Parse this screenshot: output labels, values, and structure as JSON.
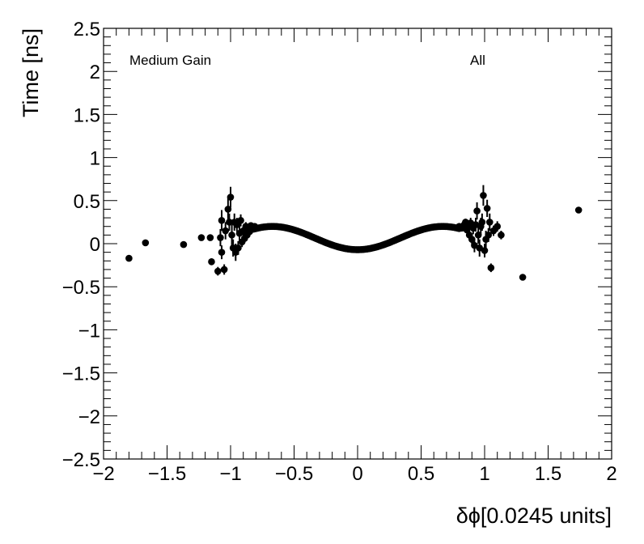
{
  "chart_data": {
    "type": "scatter",
    "title": "",
    "xlabel": "δϕ[0.0245 units]",
    "ylabel": "Time [ns]",
    "xlim": [
      -2,
      2
    ],
    "ylim": [
      -2.5,
      2.5
    ],
    "xticks": [
      "−2",
      "−1.5",
      "−1",
      "−0.5",
      "0",
      "0.5",
      "1",
      "1.5",
      "2"
    ],
    "yticks": [
      "−2.5",
      "−2",
      "−1.5",
      "−1",
      "−0.5",
      "0",
      "0.5",
      "1",
      "1.5",
      "2",
      "2.5"
    ],
    "annotations": [
      {
        "text": "Medium Gain",
        "placement": "top-left"
      },
      {
        "text": "All",
        "placement": "top-right"
      }
    ],
    "grid": false,
    "marker_color": "#000000",
    "outliers": [
      {
        "x": -1.8,
        "y": -0.17,
        "err": 0.02
      },
      {
        "x": -1.67,
        "y": 0.01,
        "err": 0.02
      },
      {
        "x": -1.37,
        "y": -0.01,
        "err": 0.02
      },
      {
        "x": -1.23,
        "y": 0.07,
        "err": 0.02
      },
      {
        "x": -1.16,
        "y": 0.07,
        "err": 0.02
      },
      {
        "x": -1.15,
        "y": -0.21,
        "err": 0.04
      },
      {
        "x": -1.1,
        "y": -0.32,
        "err": 0.05
      },
      {
        "x": -1.08,
        "y": 0.07,
        "err": 0.1
      },
      {
        "x": -1.07,
        "y": -0.1,
        "err": 0.08
      },
      {
        "x": -1.07,
        "y": 0.27,
        "err": 0.12
      },
      {
        "x": -1.05,
        "y": -0.3,
        "err": 0.06
      },
      {
        "x": -1.04,
        "y": 0.15,
        "err": 0.1
      },
      {
        "x": -1.02,
        "y": 0.4,
        "err": 0.15
      },
      {
        "x": -1.01,
        "y": 0.25,
        "err": 0.1
      },
      {
        "x": -1.0,
        "y": 0.54,
        "err": 0.12
      },
      {
        "x": -0.99,
        "y": 0.1,
        "err": 0.12
      },
      {
        "x": -0.98,
        "y": -0.05,
        "err": 0.1
      },
      {
        "x": -0.97,
        "y": 0.25,
        "err": 0.1
      },
      {
        "x": -0.96,
        "y": -0.1,
        "err": 0.1
      },
      {
        "x": -0.95,
        "y": 0.22,
        "err": 0.08
      },
      {
        "x": -0.94,
        "y": -0.05,
        "err": 0.08
      },
      {
        "x": -0.93,
        "y": 0.12,
        "err": 0.08
      },
      {
        "x": -0.92,
        "y": 0.27,
        "err": 0.07
      },
      {
        "x": -0.91,
        "y": 0.02,
        "err": 0.06
      },
      {
        "x": -0.9,
        "y": 0.15,
        "err": 0.06
      },
      {
        "x": -0.89,
        "y": 0.06,
        "err": 0.05
      },
      {
        "x": -0.88,
        "y": 0.2,
        "err": 0.05
      },
      {
        "x": -0.87,
        "y": 0.1,
        "err": 0.04
      },
      {
        "x": -0.86,
        "y": 0.17,
        "err": 0.04
      },
      {
        "x": -0.85,
        "y": 0.14,
        "err": 0.03
      },
      {
        "x": -0.84,
        "y": 0.21,
        "err": 0.03
      },
      {
        "x": -0.83,
        "y": 0.18,
        "err": 0.03
      },
      {
        "x": -0.81,
        "y": 0.2,
        "err": 0.02
      },
      {
        "x": 0.8,
        "y": 0.2,
        "err": 0.02
      },
      {
        "x": 0.82,
        "y": 0.18,
        "err": 0.03
      },
      {
        "x": 0.84,
        "y": 0.22,
        "err": 0.03
      },
      {
        "x": 0.85,
        "y": 0.25,
        "err": 0.04
      },
      {
        "x": 0.86,
        "y": 0.16,
        "err": 0.04
      },
      {
        "x": 0.87,
        "y": 0.2,
        "err": 0.05
      },
      {
        "x": 0.88,
        "y": 0.1,
        "err": 0.05
      },
      {
        "x": 0.89,
        "y": 0.24,
        "err": 0.06
      },
      {
        "x": 0.9,
        "y": 0.05,
        "err": 0.06
      },
      {
        "x": 0.91,
        "y": 0.18,
        "err": 0.07
      },
      {
        "x": 0.92,
        "y": -0.02,
        "err": 0.08
      },
      {
        "x": 0.93,
        "y": 0.22,
        "err": 0.08
      },
      {
        "x": 0.94,
        "y": 0.38,
        "err": 0.1
      },
      {
        "x": 0.95,
        "y": 0.1,
        "err": 0.1
      },
      {
        "x": 0.96,
        "y": -0.05,
        "err": 0.1
      },
      {
        "x": 0.97,
        "y": 0.2,
        "err": 0.1
      },
      {
        "x": 0.98,
        "y": 0.25,
        "err": 0.1
      },
      {
        "x": 0.99,
        "y": 0.56,
        "err": 0.12
      },
      {
        "x": 1.0,
        "y": -0.08,
        "err": 0.08
      },
      {
        "x": 1.01,
        "y": 0.05,
        "err": 0.1
      },
      {
        "x": 1.02,
        "y": 0.41,
        "err": 0.1
      },
      {
        "x": 1.03,
        "y": 0.1,
        "err": 0.08
      },
      {
        "x": 1.04,
        "y": 0.25,
        "err": 0.1
      },
      {
        "x": 1.05,
        "y": -0.28,
        "err": 0.05
      },
      {
        "x": 1.07,
        "y": 0.15,
        "err": 0.06
      },
      {
        "x": 1.1,
        "y": 0.2,
        "err": 0.06
      },
      {
        "x": 1.13,
        "y": 0.1,
        "err": 0.05
      },
      {
        "x": 1.3,
        "y": -0.39,
        "err": 0.02
      },
      {
        "x": 1.74,
        "y": 0.39,
        "err": 0.02
      }
    ],
    "core_curve": {
      "x_range": [
        -0.82,
        0.8
      ],
      "step": 0.01,
      "model": "y = -0.07 + 0.27 * sin^2(pi * x / 1.34)"
    }
  }
}
